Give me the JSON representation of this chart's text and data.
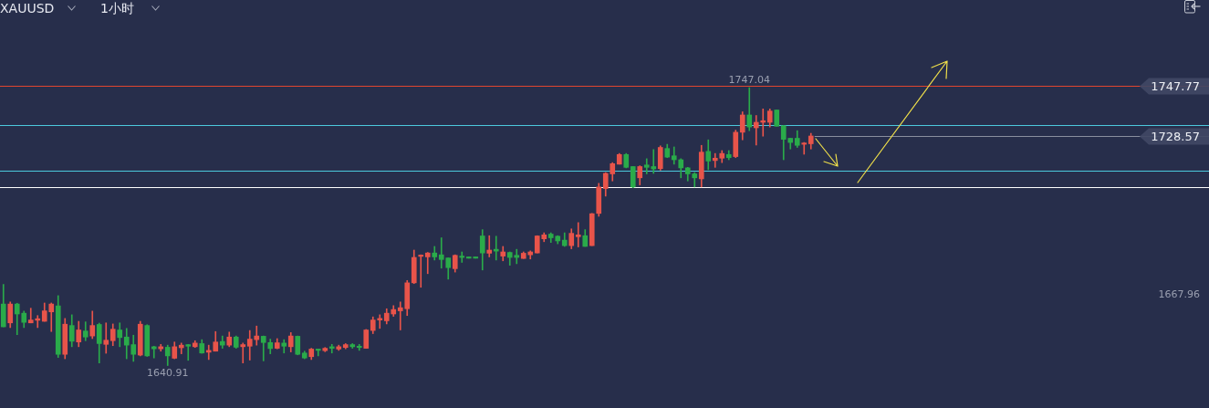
{
  "chart_data": {
    "type": "candlestick",
    "title": "XAUUSD",
    "subtitle": "1小时",
    "categories": [
      null,
      null,
      null,
      null,
      null,
      null,
      null,
      null,
      null,
      null,
      null,
      null,
      null,
      null,
      null,
      null,
      null,
      null,
      null,
      null,
      null,
      null,
      null,
      null,
      null,
      null,
      null,
      null,
      null,
      null,
      null,
      null,
      null,
      null,
      null,
      null,
      null,
      null,
      null,
      null,
      null,
      null,
      null,
      null,
      null,
      null,
      null,
      null,
      null,
      null,
      null,
      null,
      null,
      null,
      null,
      null,
      null,
      null,
      null,
      null,
      null,
      null,
      null,
      null,
      null,
      null,
      null,
      null,
      null,
      null,
      null,
      null,
      null,
      null,
      null,
      null,
      null,
      null,
      null,
      null,
      null,
      null,
      null,
      null,
      null,
      null,
      null,
      null,
      null,
      null,
      null,
      null,
      null,
      null,
      null,
      null,
      null,
      null,
      null,
      null,
      null,
      null,
      null,
      null,
      null,
      null,
      null,
      null,
      null,
      null,
      null,
      null,
      null,
      null,
      null,
      null,
      null,
      null,
      null
    ],
    "ohlc": [
      [
        1664.4,
        1671.9,
        1655.7,
        1655.7
      ],
      [
        1657.2,
        1665.2,
        1655.4,
        1664.4
      ],
      [
        1664.4,
        1664.7,
        1652.7,
        1660.6
      ],
      [
        1660.9,
        1661.7,
        1655.4,
        1657.4
      ],
      [
        1657.2,
        1662.8,
        1657.2,
        1658.3
      ],
      [
        1658.2,
        1660.0,
        1655.4,
        1658.8
      ],
      [
        1657.8,
        1664.8,
        1657.8,
        1661.8
      ],
      [
        1661.4,
        1664.8,
        1653.9,
        1664.4
      ],
      [
        1663.7,
        1667.6,
        1644.0,
        1645.2
      ],
      [
        1645.2,
        1658.9,
        1643.5,
        1656.7
      ],
      [
        1656.2,
        1660.3,
        1648.1,
        1650.2
      ],
      [
        1649.9,
        1657.8,
        1648.1,
        1654.5
      ],
      [
        1654.1,
        1657.6,
        1650.4,
        1651.8
      ],
      [
        1652.2,
        1661.7,
        1651.2,
        1656.2
      ],
      [
        1656.6,
        1657.1,
        1641.9,
        1649.3
      ],
      [
        1649.0,
        1657.2,
        1645.6,
        1650.6
      ],
      [
        1650.4,
        1656.8,
        1648.5,
        1654.8
      ],
      [
        1654.5,
        1657.2,
        1648.1,
        1651.6
      ],
      [
        1651.8,
        1655.1,
        1643.5,
        1648.7
      ],
      [
        1648.9,
        1652.5,
        1642.5,
        1645.2
      ],
      [
        1644.9,
        1657.8,
        1644.6,
        1656.7
      ],
      [
        1656.2,
        1656.5,
        1644.4,
        1644.6
      ],
      [
        1648.1,
        1648.3,
        1643.8,
        1647.3
      ],
      [
        1647.3,
        1649.0,
        1646.4,
        1648.1
      ],
      [
        1647.9,
        1648.7,
        1640.91,
        1644.6
      ],
      [
        1643.7,
        1649.9,
        1643.5,
        1648.1
      ],
      [
        1647.7,
        1649.5,
        1645.4,
        1648.7
      ],
      [
        1648.9,
        1649.0,
        1642.9,
        1648.3
      ],
      [
        1648.1,
        1650.4,
        1647.8,
        1649.5
      ],
      [
        1649.3,
        1650.8,
        1645.6,
        1645.7
      ],
      [
        1646.0,
        1648.7,
        1643.2,
        1646.7
      ],
      [
        1646.4,
        1653.9,
        1646.4,
        1649.9
      ],
      [
        1650.1,
        1652.2,
        1647.5,
        1648.7
      ],
      [
        1648.7,
        1653.7,
        1648.1,
        1651.8
      ],
      [
        1651.8,
        1652.2,
        1647.5,
        1647.9
      ],
      [
        1648.1,
        1649.5,
        1641.9,
        1648.9
      ],
      [
        1648.3,
        1654.3,
        1643.0,
        1651.0
      ],
      [
        1650.8,
        1656.0,
        1648.7,
        1652.2
      ],
      [
        1652.1,
        1652.2,
        1642.7,
        1649.7
      ],
      [
        1649.7,
        1651.0,
        1645.4,
        1647.4
      ],
      [
        1647.5,
        1651.2,
        1647.3,
        1649.6
      ],
      [
        1649.5,
        1650.8,
        1645.7,
        1648.3
      ],
      [
        1648.1,
        1653.5,
        1646.1,
        1652.2
      ],
      [
        1652.1,
        1652.2,
        1645.0,
        1645.2
      ],
      [
        1645.7,
        1646.4,
        1643.5,
        1643.8
      ],
      [
        1644.3,
        1647.5,
        1643.2,
        1647.2
      ],
      [
        1647.2,
        1647.2,
        1644.6,
        1646.7
      ],
      [
        1646.6,
        1647.8,
        1646.2,
        1647.5
      ],
      [
        1648.1,
        1649.0,
        1645.7,
        1647.5
      ],
      [
        1647.2,
        1648.7,
        1646.7,
        1648.1
      ],
      [
        1647.8,
        1649.3,
        1647.3,
        1648.9
      ],
      [
        1648.9,
        1649.3,
        1647.5,
        1648.1
      ],
      [
        1648.3,
        1649.0,
        1646.7,
        1647.8
      ],
      [
        1647.5,
        1654.7,
        1647.5,
        1654.5
      ],
      [
        1654.3,
        1659.5,
        1653.1,
        1658.3
      ],
      [
        1658.3,
        1660.3,
        1655.1,
        1658.9
      ],
      [
        1658.0,
        1662.6,
        1656.8,
        1660.9
      ],
      [
        1660.6,
        1663.8,
        1659.7,
        1662.3
      ],
      [
        1661.8,
        1665.2,
        1654.5,
        1663.0
      ],
      [
        1662.6,
        1673.4,
        1660.0,
        1672.5
      ],
      [
        1672.5,
        1685.0,
        1672.2,
        1682.2
      ],
      [
        1682.6,
        1683.2,
        1670.8,
        1683.1
      ],
      [
        1682.4,
        1684.1,
        1676.0,
        1683.9
      ],
      [
        1683.9,
        1686.4,
        1681.2,
        1682.4
      ],
      [
        1683.2,
        1689.7,
        1678.1,
        1681.4
      ],
      [
        1682.0,
        1682.0,
        1673.9,
        1678.3
      ],
      [
        1677.9,
        1683.2,
        1676.6,
        1683.0
      ],
      [
        1682.7,
        1684.3,
        1680.3,
        1682.2
      ],
      [
        1682.4,
        1682.4,
        1681.9,
        1681.9
      ],
      [
        1682.4,
        1682.4,
        1681.9,
        1681.9
      ],
      [
        1690.4,
        1692.8,
        1677.4,
        1683.9
      ],
      [
        1683.8,
        1690.5,
        1682.4,
        1685.0
      ],
      [
        1685.3,
        1690.3,
        1681.2,
        1684.6
      ],
      [
        1682.7,
        1686.4,
        1680.9,
        1684.3
      ],
      [
        1684.1,
        1684.3,
        1679.2,
        1682.2
      ],
      [
        1683.0,
        1685.3,
        1679.8,
        1682.2
      ],
      [
        1681.8,
        1684.3,
        1681.8,
        1683.8
      ],
      [
        1683.2,
        1684.7,
        1681.6,
        1684.3
      ],
      [
        1683.9,
        1690.5,
        1683.9,
        1690.4
      ],
      [
        1689.3,
        1691.6,
        1688.2,
        1690.8
      ],
      [
        1691.1,
        1691.6,
        1687.9,
        1689.7
      ],
      [
        1690.3,
        1690.5,
        1687.4,
        1688.5
      ],
      [
        1688.8,
        1691.6,
        1686.4,
        1686.7
      ],
      [
        1686.7,
        1693.1,
        1685.5,
        1691.4
      ],
      [
        1690.1,
        1695.5,
        1686.2,
        1690.8
      ],
      [
        1690.5,
        1692.8,
        1686.4,
        1686.4
      ],
      [
        1686.7,
        1699.0,
        1686.7,
        1698.9
      ],
      [
        1699.0,
        1710.5,
        1697.9,
        1709.1
      ],
      [
        1708.5,
        1714.6,
        1705.6,
        1714.3
      ],
      [
        1714.1,
        1718.4,
        1711.4,
        1718.0
      ],
      [
        1717.8,
        1721.9,
        1717.8,
        1721.5
      ],
      [
        1721.5,
        1721.9,
        1716.4,
        1716.6
      ],
      [
        1716.9,
        1716.9,
        1708.8,
        1709.1
      ],
      [
        1712.6,
        1717.2,
        1709.9,
        1716.9
      ],
      [
        1717.5,
        1719.9,
        1714.1,
        1716.6
      ],
      [
        1716.9,
        1723.4,
        1714.3,
        1716.0
      ],
      [
        1716.1,
        1724.8,
        1715.5,
        1724.2
      ],
      [
        1723.8,
        1725.4,
        1720.3,
        1720.5
      ],
      [
        1721.0,
        1724.4,
        1717.8,
        1719.5
      ],
      [
        1719.5,
        1719.9,
        1712.6,
        1716.4
      ],
      [
        1716.4,
        1716.6,
        1711.4,
        1714.1
      ],
      [
        1714.1,
        1714.6,
        1709.1,
        1712.6
      ],
      [
        1712.2,
        1725.0,
        1709.1,
        1722.4
      ],
      [
        1722.7,
        1727.1,
        1715.7,
        1719.0
      ],
      [
        1719.2,
        1721.9,
        1716.6,
        1720.1
      ],
      [
        1720.1,
        1723.0,
        1718.4,
        1721.9
      ],
      [
        1721.5,
        1723.0,
        1719.5,
        1720.3
      ],
      [
        1720.7,
        1730.8,
        1720.3,
        1730.0
      ],
      [
        1730.0,
        1737.8,
        1727.1,
        1736.6
      ],
      [
        1736.6,
        1747.04,
        1730.6,
        1732.0
      ],
      [
        1731.7,
        1736.4,
        1725.1,
        1733.8
      ],
      [
        1733.8,
        1738.9,
        1728.5,
        1734.4
      ],
      [
        1733.8,
        1738.9,
        1732.0,
        1738.1
      ],
      [
        1738.5,
        1738.5,
        1732.3,
        1732.3
      ],
      [
        1732.5,
        1732.5,
        1719.5,
        1727.3
      ],
      [
        1727.7,
        1727.7,
        1723.6,
        1726.1
      ],
      [
        1727.7,
        1730.6,
        1724.2,
        1725.0
      ],
      [
        1725.4,
        1726.1,
        1721.6,
        1725.9
      ],
      [
        1725.6,
        1729.6,
        1723.6,
        1728.57
      ]
    ],
    "colors": [
      "#2aab4a",
      "#e8544a",
      "#2aab4a",
      "#2aab4a",
      "#e8544a",
      "#e8544a",
      "#e8544a",
      "#e8544a",
      "#2aab4a",
      "#e8544a",
      "#2aab4a",
      "#e8544a",
      "#2aab4a",
      "#e8544a",
      "#2aab4a",
      "#e8544a",
      "#e8544a",
      "#2aab4a",
      "#2aab4a",
      "#2aab4a",
      "#e8544a",
      "#2aab4a",
      "#2aab4a",
      "#e8544a",
      "#2aab4a",
      "#e8544a",
      "#e8544a",
      "#2aab4a",
      "#e8544a",
      "#2aab4a",
      "#e8544a",
      "#e8544a",
      "#2aab4a",
      "#e8544a",
      "#2aab4a",
      "#e8544a",
      "#e8544a",
      "#e8544a",
      "#2aab4a",
      "#2aab4a",
      "#e8544a",
      "#2aab4a",
      "#e8544a",
      "#2aab4a",
      "#2aab4a",
      "#e8544a",
      "#2aab4a",
      "#e8544a",
      "#2aab4a",
      "#e8544a",
      "#e8544a",
      "#2aab4a",
      "#2aab4a",
      "#e8544a",
      "#e8544a",
      "#e8544a",
      "#e8544a",
      "#e8544a",
      "#e8544a",
      "#e8544a",
      "#e8544a",
      "#e8544a",
      "#e8544a",
      "#2aab4a",
      "#2aab4a",
      "#2aab4a",
      "#e8544a",
      "#2aab4a",
      "#2aab4a",
      "#2aab4a",
      "#2aab4a",
      "#e8544a",
      "#2aab4a",
      "#e8544a",
      "#2aab4a",
      "#2aab4a",
      "#e8544a",
      "#e8544a",
      "#e8544a",
      "#e8544a",
      "#2aab4a",
      "#2aab4a",
      "#2aab4a",
      "#e8544a",
      "#e8544a",
      "#2aab4a",
      "#e8544a",
      "#e8544a",
      "#e8544a",
      "#e8544a",
      "#e8544a",
      "#2aab4a",
      "#2aab4a",
      "#e8544a",
      "#2aab4a",
      "#2aab4a",
      "#e8544a",
      "#2aab4a",
      "#2aab4a",
      "#2aab4a",
      "#2aab4a",
      "#2aab4a",
      "#e8544a",
      "#2aab4a",
      "#e8544a",
      "#e8544a",
      "#2aab4a",
      "#e8544a",
      "#e8544a",
      "#2aab4a",
      "#e8544a",
      "#e8544a",
      "#e8544a",
      "#2aab4a",
      "#2aab4a",
      "#2aab4a",
      "#2aab4a",
      "#e8544a",
      "#e8544a"
    ],
    "ylim": [
      1624.7,
      1780.5
    ],
    "tick_labels": false,
    "ref_lines": [
      {
        "axis": "y",
        "value": 1747.77,
        "label": "1747.77",
        "color": "#e0452f"
      },
      {
        "axis": "y",
        "value": 1732.8,
        "color": "#4cc9dd"
      },
      {
        "axis": "y",
        "value": 1728.57,
        "label": "1728.57",
        "color": "#8a8f9e"
      },
      {
        "axis": "y",
        "value": 1715.4,
        "color": "#4cc9dd"
      },
      {
        "axis": "y",
        "value": 1709.1,
        "color": "#ffffff"
      }
    ],
    "annotations": [
      {
        "text": "1747.04",
        "y": 1747.04
      },
      {
        "text": "1640.91",
        "y": 1640.91
      },
      "1667.96"
    ]
  }
}
